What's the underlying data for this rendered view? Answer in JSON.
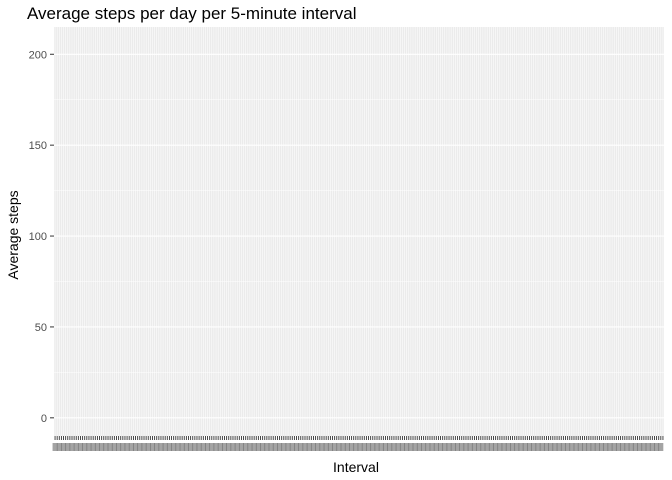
{
  "chart_data": {
    "type": "line",
    "title": "Average steps per day per 5-minute interval",
    "xlabel": "Interval",
    "ylabel": "Average steps",
    "ylim": [
      -10,
      215
    ],
    "yticks": [
      0,
      50,
      100,
      150,
      200
    ],
    "x_category_count": 288,
    "x_tick_labels": "illegible (288 overlapping 5-minute interval labels)",
    "series": [],
    "grid": true,
    "panel_background": "#EBEBEB",
    "grid_color": "#FFFFFF",
    "legend": "none"
  }
}
